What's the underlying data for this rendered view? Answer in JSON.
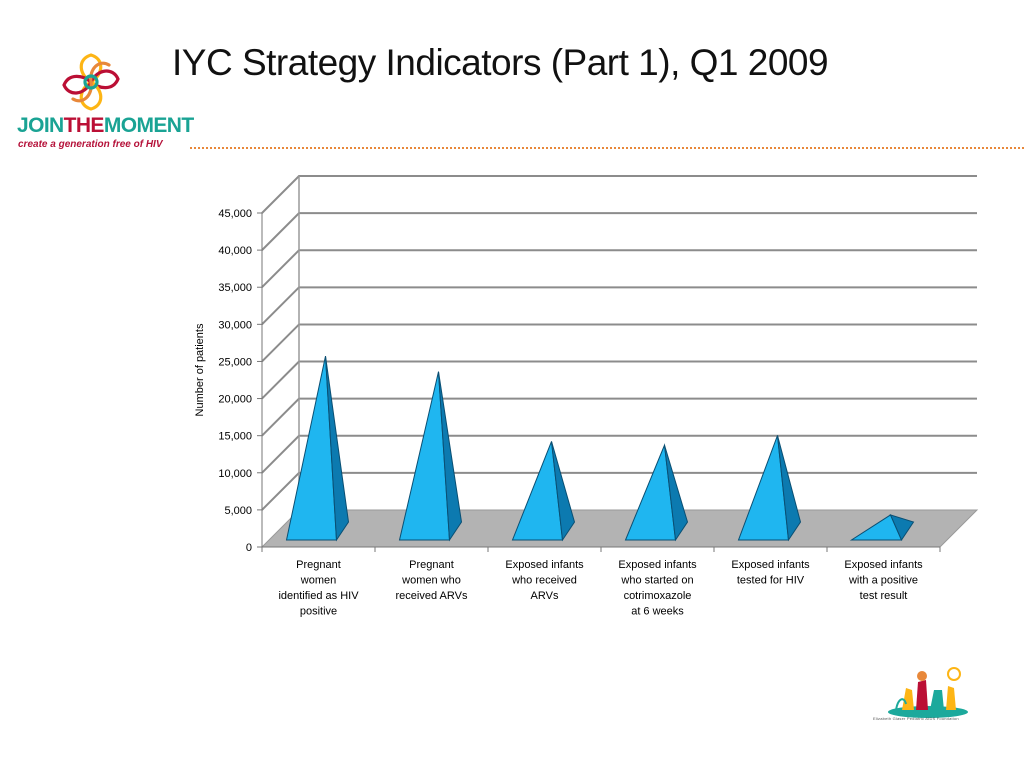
{
  "slide": {
    "title": "IYC Strategy Indicators (Part 1), Q1 2009"
  },
  "logo": {
    "text_join": "JOIN",
    "text_the": "THE",
    "text_moment": "MOMENT",
    "tagline": "create a generation free of HIV"
  },
  "logo2": {
    "caption": "Elizabeth Glaser Pediatric AIDS Foundation"
  },
  "colors": {
    "red": "#bb0f35",
    "yellow": "#fdb515",
    "teal": "#1ca99c",
    "logo_teal": "#1aa394",
    "bar_light": "#1fb6f0",
    "bar_dark": "#0c7ab0",
    "floor": "#b3b3b3"
  },
  "chart_data": {
    "type": "bar",
    "style": "3d-pyramid",
    "ylabel": "Number of patients",
    "xlabel": "",
    "ylim": [
      0,
      45000
    ],
    "yticks": [
      0,
      5000,
      10000,
      15000,
      20000,
      25000,
      30000,
      35000,
      40000,
      45000
    ],
    "ytick_labels": [
      "0",
      "5,000",
      "10,000",
      "15,000",
      "20,000",
      "25,000",
      "30,000",
      "35,000",
      "40,000",
      "45,000"
    ],
    "grid": true,
    "legend": "none",
    "categories": [
      [
        "Pregnant",
        "women",
        "identified as HIV",
        "positive"
      ],
      [
        "Pregnant",
        "women who",
        "received ARVs"
      ],
      [
        "Exposed infants",
        "who received",
        "ARVs"
      ],
      [
        "Exposed infants",
        "who started on",
        "cotrimoxazole",
        "at 6 weeks"
      ],
      [
        "Exposed infants",
        "tested for HIV"
      ],
      [
        "Exposed infants",
        "with a positive",
        "test result"
      ]
    ],
    "values": [
      23300,
      21200,
      11800,
      11300,
      12600,
      1900
    ]
  }
}
